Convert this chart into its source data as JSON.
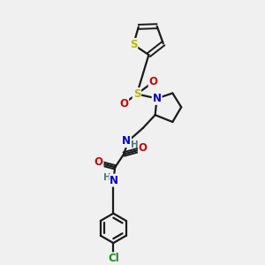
{
  "background_color": "#f0f0f0",
  "bond_color": "#1a1a1a",
  "atom_colors": {
    "S": "#b8b800",
    "N": "#0000cc",
    "O": "#cc0000",
    "Cl": "#228B22",
    "C": "#1a1a1a",
    "H": "#4a7a7a"
  },
  "figsize": [
    3.0,
    3.0
  ],
  "dpi": 100
}
